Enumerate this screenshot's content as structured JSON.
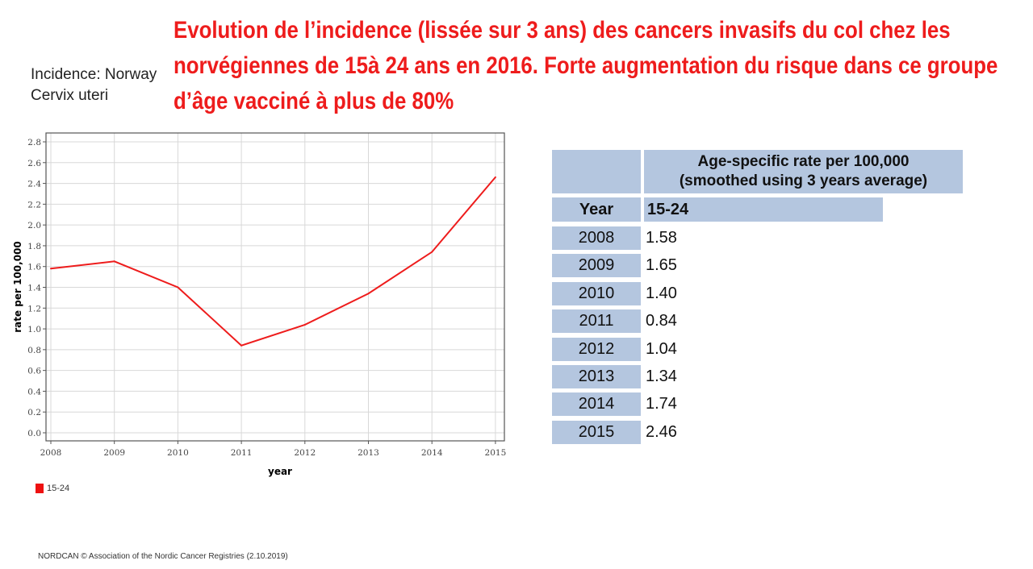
{
  "title": "Evolution de l’incidence (lissée sur 3 ans) des cancers invasifs du col chez les norvégiennes de 15à 24 ans en 2016. Forte augmentation du risque dans ce groupe d’âge vacciné à plus de 80%",
  "subtitle": [
    "Incidence: Norway",
    "Cervix uteri"
  ],
  "footer": "NORDCAN © Association of the Nordic Cancer Registries (2.10.2019)",
  "table": {
    "header": "Age-specific rate per 100,000",
    "header2": "(smoothed using 3 years average)",
    "col_year": "Year",
    "col_age": "15-24",
    "rows": [
      [
        "2008",
        "1.58"
      ],
      [
        "2009",
        "1.65"
      ],
      [
        "2010",
        "1.40"
      ],
      [
        "2011",
        "0.84"
      ],
      [
        "2012",
        "1.04"
      ],
      [
        "2013",
        "1.34"
      ],
      [
        "2014",
        "1.74"
      ],
      [
        "2015",
        "2.46"
      ]
    ]
  },
  "chart_data": {
    "type": "line",
    "x": [
      "2008",
      "2009",
      "2010",
      "2011",
      "2012",
      "2013",
      "2014",
      "2015"
    ],
    "series": [
      {
        "name": "15-24",
        "values": [
          1.58,
          1.65,
          1.4,
          0.84,
          1.04,
          1.34,
          1.74,
          2.46
        ],
        "color": "#ee1c1c"
      }
    ],
    "xlabel": "year",
    "ylabel": "rate per 100,000",
    "ylim": [
      0,
      2.8
    ],
    "yticks": [
      "0.0",
      "0.2",
      "0.4",
      "0.6",
      "0.8",
      "1.0",
      "1.2",
      "1.4",
      "1.6",
      "1.8",
      "2.0",
      "2.2",
      "2.4",
      "2.6",
      "2.8"
    ],
    "grid": true,
    "legend": "bottom-left"
  }
}
